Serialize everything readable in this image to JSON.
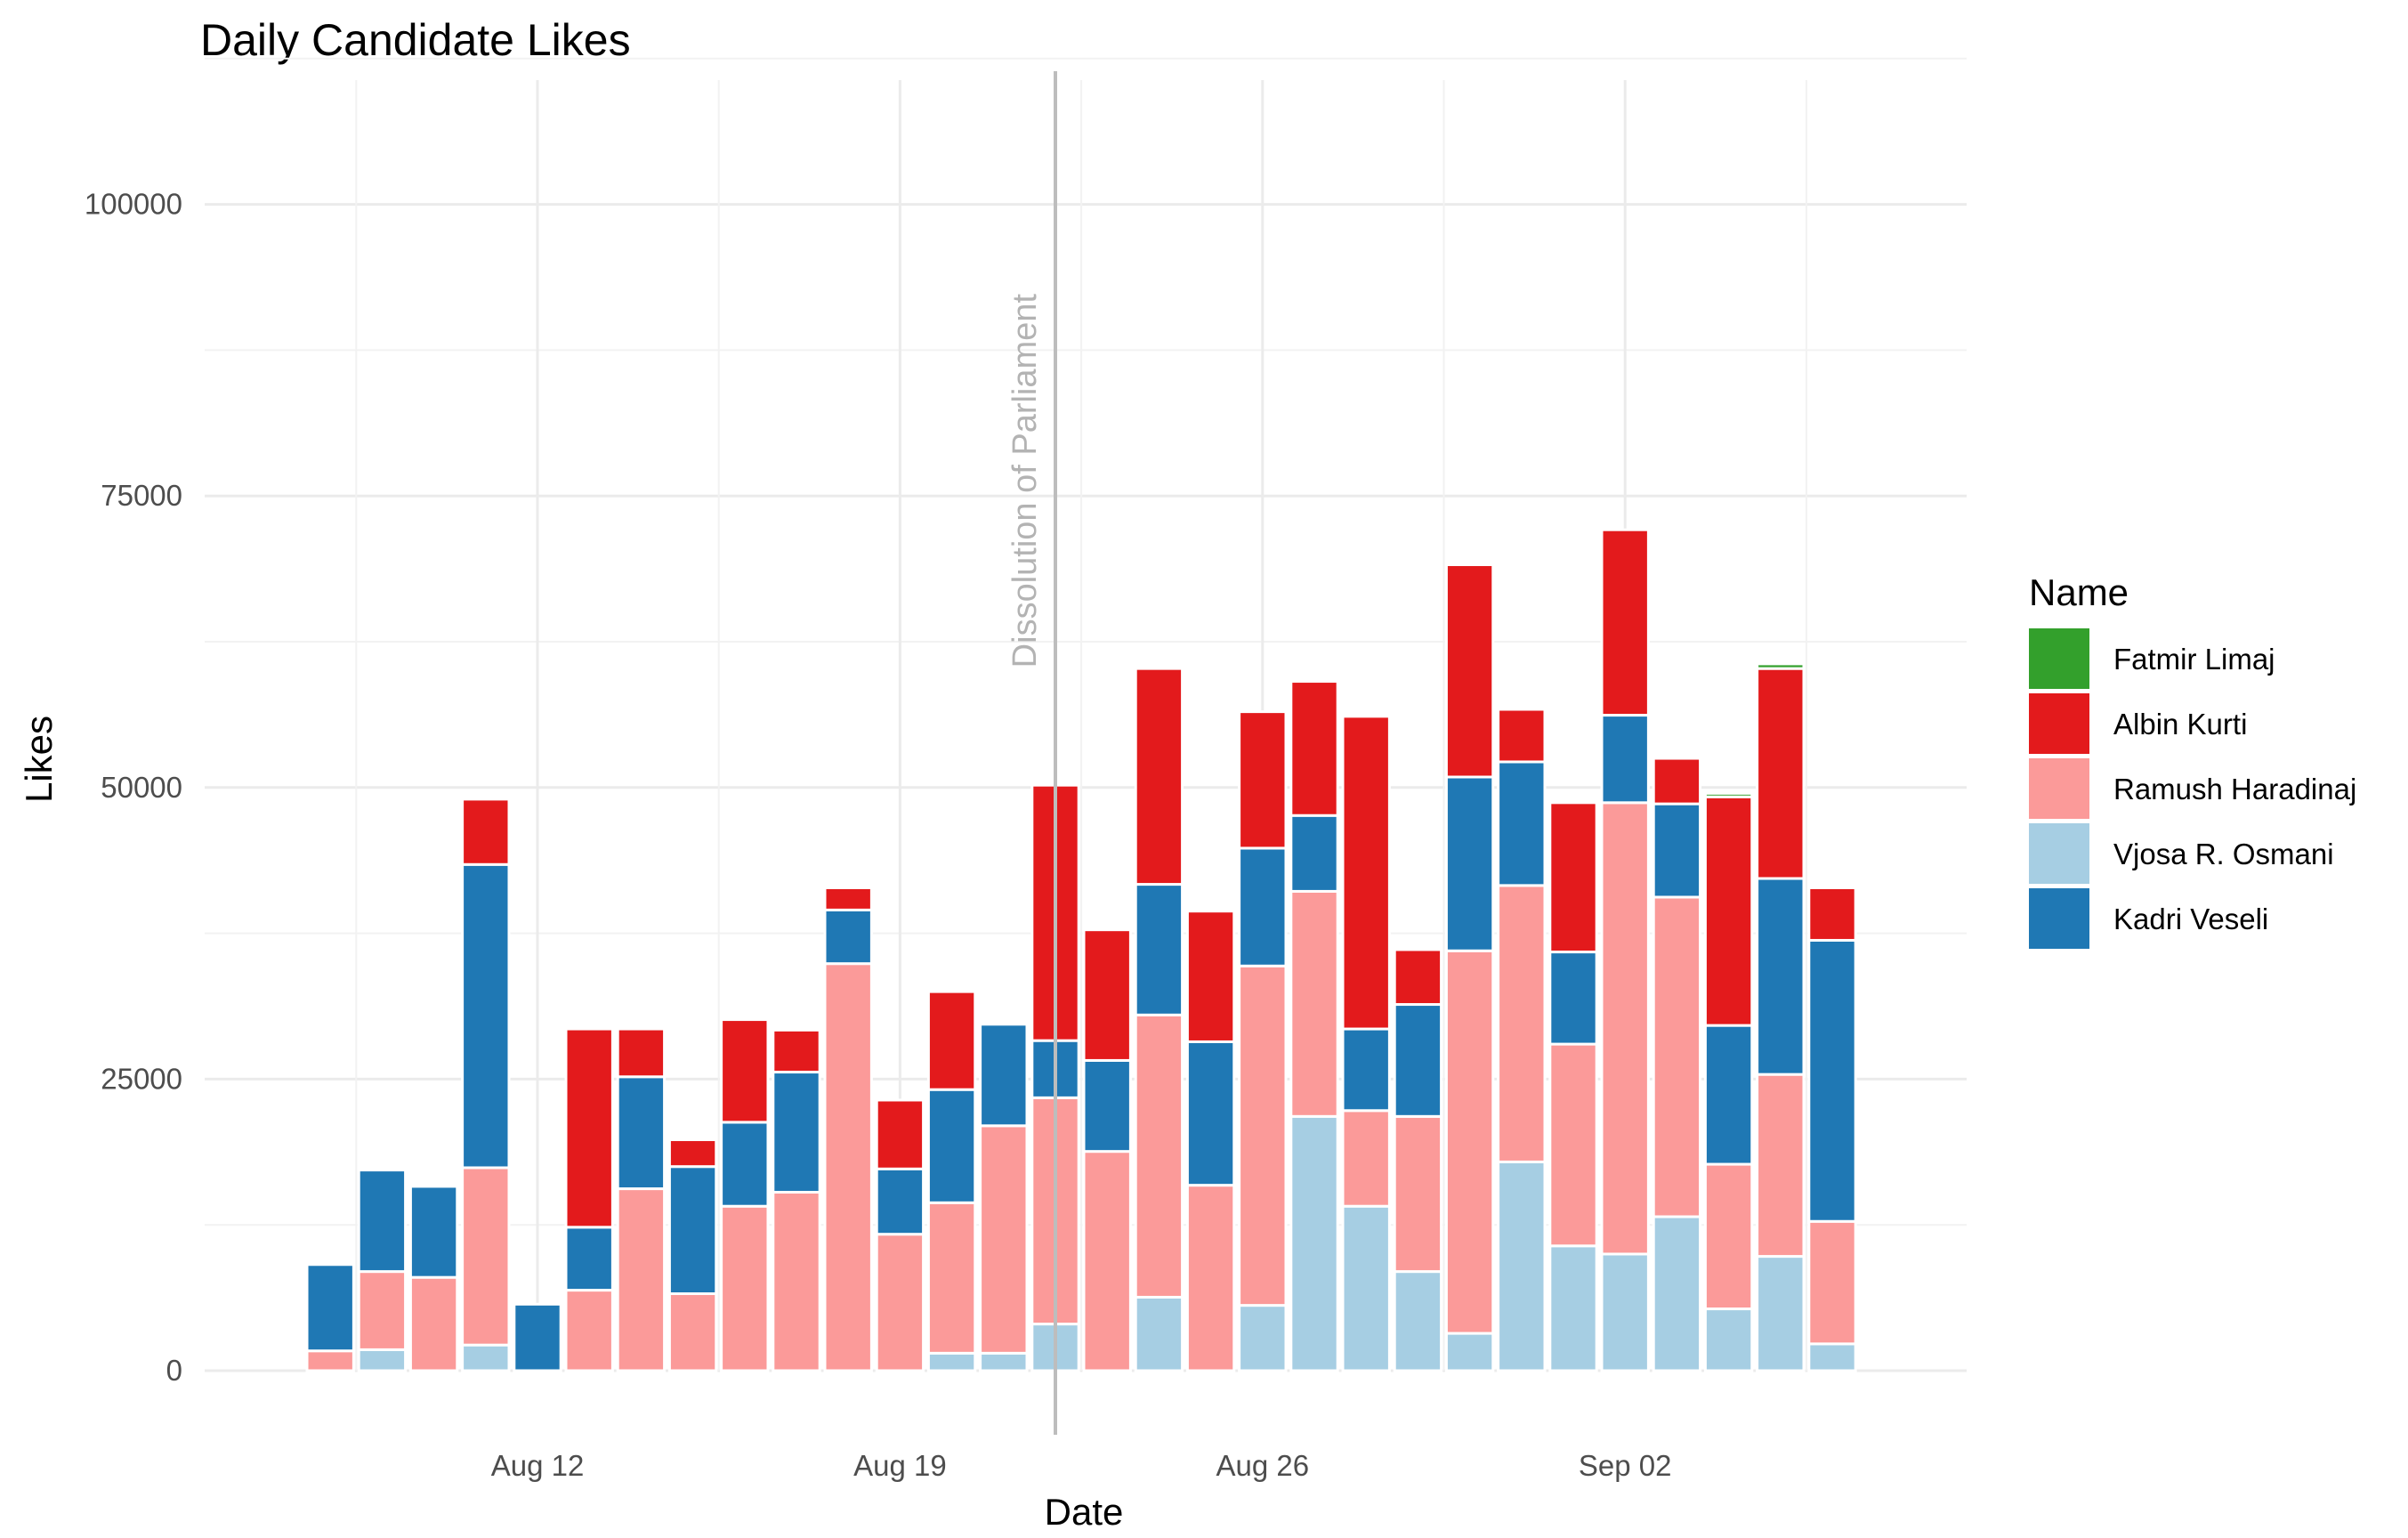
{
  "chart_data": {
    "type": "bar",
    "stacked": true,
    "title": "Daily Candidate Likes",
    "xlabel": "Date",
    "ylabel": "Likes",
    "ylim": [
      0,
      110000
    ],
    "y_ticks": [
      0,
      25000,
      50000,
      75000,
      100000
    ],
    "x_ticks": [
      {
        "date": "2019-08-12",
        "label": "Aug 12"
      },
      {
        "date": "2019-08-19",
        "label": "Aug 19"
      },
      {
        "date": "2019-08-26",
        "label": "Aug 26"
      },
      {
        "date": "2019-09-02",
        "label": "Sep 02"
      }
    ],
    "grid": true,
    "legend": {
      "title": "Name",
      "position": "right"
    },
    "annotations": [
      {
        "type": "vline",
        "date": "2019-08-22",
        "label": "Dissolution of Parliament",
        "color": "#bdbdbd"
      }
    ],
    "categories": [
      "2019-08-08",
      "2019-08-09",
      "2019-08-10",
      "2019-08-11",
      "2019-08-12",
      "2019-08-13",
      "2019-08-14",
      "2019-08-15",
      "2019-08-16",
      "2019-08-17",
      "2019-08-18",
      "2019-08-19",
      "2019-08-20",
      "2019-08-21",
      "2019-08-22",
      "2019-08-23",
      "2019-08-24",
      "2019-08-25",
      "2019-08-26",
      "2019-08-27",
      "2019-08-28",
      "2019-08-29",
      "2019-08-30",
      "2019-08-31",
      "2019-09-01",
      "2019-09-02",
      "2019-09-03",
      "2019-09-04",
      "2019-09-05",
      "2019-09-06"
    ],
    "series": [
      {
        "name": "Vjosa R. Osmani",
        "color": "#a6cee3",
        "values": [
          0,
          1800,
          0,
          2200,
          0,
          0,
          0,
          0,
          0,
          0,
          0,
          0,
          1500,
          1500,
          4000,
          0,
          6300,
          0,
          5600,
          21800,
          14100,
          8500,
          3200,
          17900,
          10700,
          10000,
          13200,
          5300,
          9800,
          2300
        ]
      },
      {
        "name": "Ramush Haradinaj",
        "color": "#fb9a99",
        "values": [
          1700,
          6700,
          8000,
          15200,
          0,
          6900,
          15600,
          6600,
          14100,
          15300,
          34900,
          11700,
          12900,
          19500,
          19400,
          18800,
          24200,
          15900,
          29100,
          19300,
          8200,
          13300,
          32800,
          23700,
          17300,
          38700,
          27400,
          12400,
          15600,
          10500
        ]
      },
      {
        "name": "Kadri Veseli",
        "color": "#1f78b4",
        "values": [
          7400,
          8700,
          7800,
          26000,
          5700,
          5400,
          9600,
          10900,
          7200,
          10300,
          4600,
          5600,
          9700,
          8700,
          4900,
          7800,
          11200,
          12300,
          10100,
          6500,
          7000,
          9600,
          14900,
          10600,
          7900,
          7500,
          8000,
          11900,
          16800,
          24100
        ]
      },
      {
        "name": "Albin Kurti",
        "color": "#e31a1c",
        "values": [
          0,
          0,
          0,
          5600,
          0,
          17000,
          4100,
          2300,
          8800,
          3600,
          1900,
          5900,
          8400,
          0,
          21900,
          11200,
          18500,
          11200,
          11700,
          11500,
          26800,
          4700,
          18200,
          4500,
          12800,
          15900,
          3900,
          19600,
          18000,
          4500
        ]
      },
      {
        "name": "Fatmir Limaj",
        "color": "#33a02c",
        "values": [
          0,
          0,
          0,
          0,
          0,
          0,
          0,
          0,
          0,
          0,
          0,
          0,
          0,
          0,
          0,
          0,
          0,
          0,
          0,
          0,
          0,
          0,
          0,
          0,
          0,
          0,
          0,
          300,
          400,
          0
        ]
      }
    ],
    "legend_order": [
      "Fatmir Limaj",
      "Albin Kurti",
      "Ramush Haradinaj",
      "Vjosa R. Osmani",
      "Kadri Veseli"
    ]
  }
}
